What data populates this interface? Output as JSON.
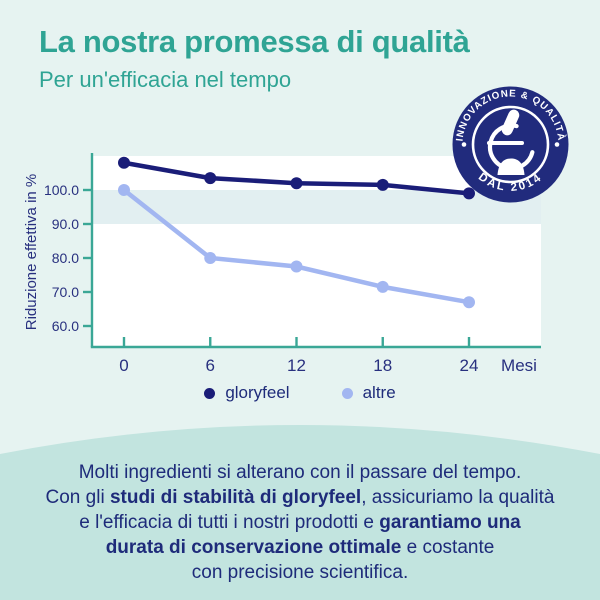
{
  "page": {
    "bg_top_color": "#e6f3f1",
    "bg_bottom_color": "#c2e4df",
    "accent_teal": "#2fa494",
    "accent_navy": "#1e2b7a"
  },
  "header": {
    "title": "La nostra promessa di qualità",
    "subtitle": "Per un'efficacia nel tempo"
  },
  "badge": {
    "arc_top": "INNOVAZIONE & QUALITÀ",
    "arc_bottom": "DAL 2014",
    "bg_color": "#212b7d",
    "icon": "microscope-icon"
  },
  "chart_data": {
    "type": "line",
    "x": [
      0,
      6,
      12,
      18,
      24
    ],
    "xlabel": "Mesi",
    "ylabel": "Riduzione effettiva in %",
    "yticks": [
      100,
      90,
      80,
      70,
      60
    ],
    "ytick_labels": [
      "100.0",
      "90.0",
      "80.0",
      "70.0",
      "60.0"
    ],
    "ylim": [
      55,
      110
    ],
    "grid": false,
    "legend_position": "bottom",
    "axis_color": "#3aa796",
    "plot_bg": "#ffffff",
    "highlight_band": {
      "from": 90,
      "to": 100,
      "color": "#e2eff1"
    },
    "series": [
      {
        "name": "gloryfeel",
        "color": "#1a1d78",
        "values": [
          108,
          103.5,
          102,
          101.5,
          99
        ]
      },
      {
        "name": "altre",
        "color": "#a2b6f1",
        "values": [
          100,
          80,
          77.5,
          71.5,
          67
        ]
      }
    ]
  },
  "legend": {
    "items": [
      {
        "label": "gloryfeel",
        "color": "#1a1d78"
      },
      {
        "label": "altre",
        "color": "#a2b6f1"
      }
    ]
  },
  "footer": {
    "lines": [
      {
        "pre": "Molti ingredienti si alterano con il passare del tempo.",
        "bold": "",
        "post": ""
      },
      {
        "pre": "Con gli ",
        "bold": "studi di stabilità di gloryfeel",
        "post": ", assicuriamo la qualità"
      },
      {
        "pre": "e l'efficacia di tutti i nostri prodotti e ",
        "bold": "garantiamo una",
        "post": ""
      },
      {
        "pre": "",
        "bold": "durata di conservazione ottimale",
        "post": " e costante"
      },
      {
        "pre": "con precisione scientifica.",
        "bold": "",
        "post": ""
      }
    ]
  }
}
